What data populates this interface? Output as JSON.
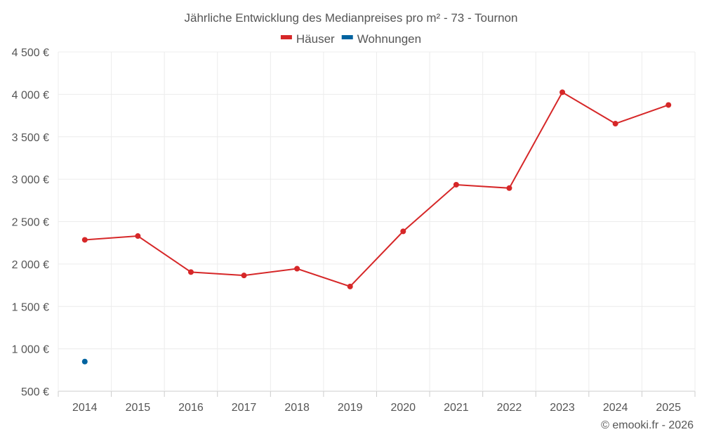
{
  "chart_data": {
    "type": "line",
    "title": "Jährliche Entwicklung des Medianpreises pro m² - 73 - Tournon",
    "categories": [
      "2014",
      "2015",
      "2016",
      "2017",
      "2018",
      "2019",
      "2020",
      "2021",
      "2022",
      "2023",
      "2024",
      "2025"
    ],
    "series": [
      {
        "name": "Häuser",
        "color": "#d62728",
        "values": [
          2285,
          2330,
          1905,
          1865,
          1945,
          1735,
          2385,
          2935,
          2895,
          4025,
          3655,
          3875
        ]
      },
      {
        "name": "Wohnungen",
        "color": "#0063a0",
        "values": [
          850,
          null,
          null,
          null,
          null,
          null,
          null,
          null,
          null,
          null,
          null,
          null
        ]
      }
    ],
    "ylim": [
      500,
      4500
    ],
    "yticks": [
      {
        "value": 500,
        "label": "500 €"
      },
      {
        "value": 1000,
        "label": "1 000 €"
      },
      {
        "value": 1500,
        "label": "1 500 €"
      },
      {
        "value": 2000,
        "label": "2 000 €"
      },
      {
        "value": 2500,
        "label": "2 500 €"
      },
      {
        "value": 3000,
        "label": "3 000 €"
      },
      {
        "value": 3500,
        "label": "3 500 €"
      },
      {
        "value": 4000,
        "label": "4 000 €"
      },
      {
        "value": 4500,
        "label": "4 500 €"
      }
    ],
    "grid": true,
    "legend_position": "top-center",
    "credit": "© emooki.fr - 2026"
  }
}
